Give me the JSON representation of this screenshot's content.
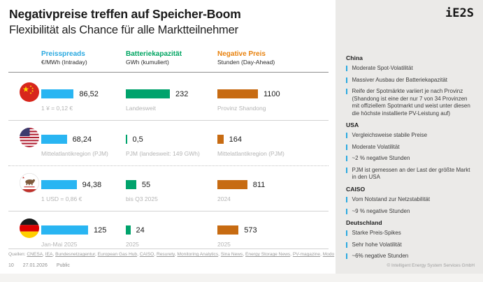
{
  "slide": {
    "title": "Negativpreise treffen auf Speicher-Boom",
    "subtitle": "Flexibilität als Chance für alle Marktteilnehmer"
  },
  "logo": "iE2S",
  "columns": [
    {
      "label": "Preisspreads",
      "unit": "€/MWh (Intraday)",
      "text_color": "#2aa9e0",
      "bar_color": "#29b5f2"
    },
    {
      "label": "Batteriekapazität",
      "unit": "GWh (kumuliert)",
      "text_color": "#00a562",
      "bar_color": "#00a36c"
    },
    {
      "label": "Negative Preis",
      "unit": "Stunden (Day-Ahead)",
      "text_color": "#e8820e",
      "bar_color": "#c76b12"
    }
  ],
  "rows": [
    {
      "flag": "china-flag",
      "cells": [
        {
          "value": "86,52",
          "note": "1 ¥ = 0,12 €"
        },
        {
          "value": "232",
          "note": "Landesweit"
        },
        {
          "value": "1100",
          "note": "Provinz Shandong"
        }
      ]
    },
    {
      "flag": "usa-flag",
      "cells": [
        {
          "value": "68,24",
          "note": "Mittelatlantikregion (PJM)"
        },
        {
          "value": "0,5",
          "note": "PJM (landesweit: 149 GWh)"
        },
        {
          "value": "164",
          "note": "Mittelatlantikregion (PJM)"
        }
      ]
    },
    {
      "flag": "california-flag",
      "cells": [
        {
          "value": "94,38",
          "note": "1 USD = 0,86 €"
        },
        {
          "value": "55",
          "note": "bis Q3 2025"
        },
        {
          "value": "811",
          "note": "2024"
        }
      ]
    },
    {
      "flag": "germany-flag",
      "cells": [
        {
          "value": "125",
          "note": "Jan-Mai 2025"
        },
        {
          "value": "24",
          "note": "2025"
        },
        {
          "value": "573",
          "note": "2025"
        }
      ]
    }
  ],
  "chart_data": {
    "type": "bar",
    "orientation": "horizontal",
    "categories": [
      "China",
      "USA",
      "Kalifornien (CAISO)",
      "Deutschland"
    ],
    "series": [
      {
        "name": "Preisspreads €/MWh (Intraday)",
        "values": [
          86.52,
          68.24,
          94.38,
          125
        ]
      },
      {
        "name": "Batteriekapazität GWh (kumuliert)",
        "values": [
          232,
          0.5,
          55,
          24
        ]
      },
      {
        "name": "Negative Preis Stunden (Day-Ahead)",
        "values": [
          1100,
          164,
          811,
          573
        ]
      }
    ],
    "legend_position": "top",
    "grid": false
  },
  "sources_label": "Quellen:",
  "sources": [
    "CNESA",
    "IEA",
    "Bundesnetzagentur",
    "European Gas Hub",
    "CAISO",
    "Resurety",
    "Monitoring Analytics",
    "Sina News",
    "Energy Storage News",
    "PV-magazine",
    "Modo"
  ],
  "footer": {
    "page": "10",
    "date": "27.01.2026",
    "status": "Public"
  },
  "sidebar": {
    "sections": [
      {
        "title": "China",
        "bullets": [
          "Moderate Spot-Volatilität",
          "Massiver Ausbau der Batteriekapazität",
          "Reife der Spotmärkte variiert je nach Provinz (Shandong ist eine der nur 7 von 34 Provinzen mit offiziellem Spotmarkt und weist unter diesen die höchste installierte PV-Leistung auf)"
        ]
      },
      {
        "title": "USA",
        "bullets": [
          "Vergleichsweise stabile Preise",
          "Moderate Volatilität",
          "~2 % negative Stunden",
          "PJM ist gemessen an der Last der größte Markt in den USA"
        ]
      },
      {
        "title": "CAISO",
        "bullets": [
          "Vom Notstand zur Netzstabilität",
          "~9 % negative Stunden"
        ]
      },
      {
        "title": "Deutschland",
        "bullets": [
          "Starke Preis-Spikes",
          "Sehr hohe Volatilität",
          "~6% negative Stunden"
        ]
      }
    ],
    "copyright": "© Intelligent Energy System Services GmbH"
  }
}
